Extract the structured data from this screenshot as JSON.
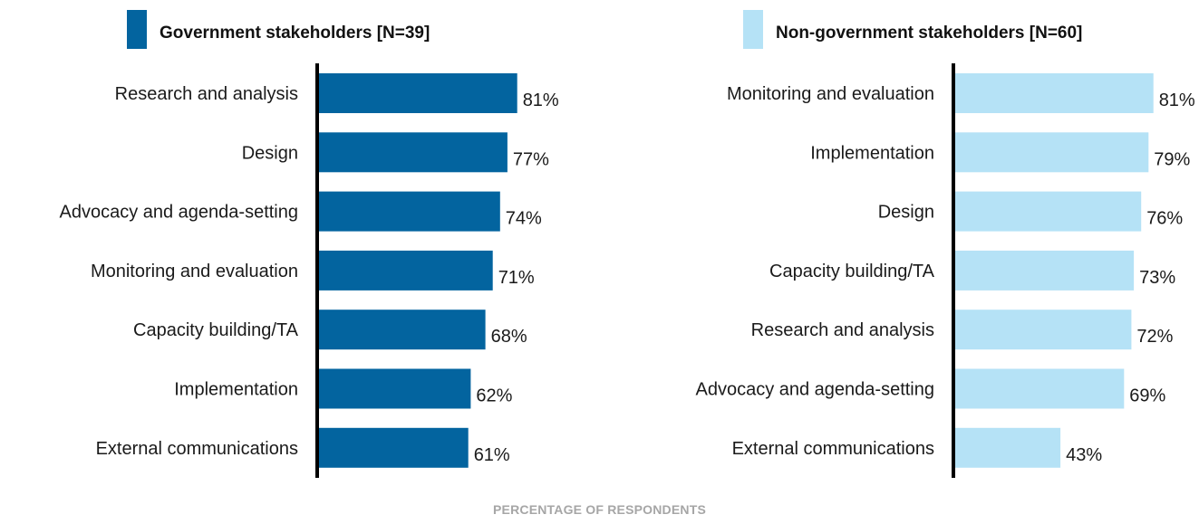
{
  "chart_data": [
    {
      "type": "bar",
      "orientation": "horizontal",
      "title": "Government stakeholders [N=39]",
      "color": "#03649f",
      "categories": [
        "Research and analysis",
        "Design",
        "Advocacy and agenda-setting",
        "Monitoring and evaluation",
        "Capacity building/TA",
        "Implementation",
        "External communications"
      ],
      "values": [
        81,
        77,
        74,
        71,
        68,
        62,
        61
      ],
      "value_labels": [
        "81%",
        "77%",
        "74%",
        "71%",
        "68%",
        "62%",
        "61%"
      ]
    },
    {
      "type": "bar",
      "orientation": "horizontal",
      "title": "Non-government stakeholders [N=60]",
      "color": "#b5e2f6",
      "categories": [
        "Monitoring and evaluation",
        "Implementation",
        "Design",
        "Capacity building/TA",
        "Research and analysis",
        "Advocacy and agenda-setting",
        "External communications"
      ],
      "values": [
        81,
        79,
        76,
        73,
        72,
        69,
        43
      ],
      "value_labels": [
        "81%",
        "79%",
        "76%",
        "73%",
        "72%",
        "69%",
        "43%"
      ]
    }
  ],
  "xlabel": "PERCENTAGE OF RESPONDENTS"
}
